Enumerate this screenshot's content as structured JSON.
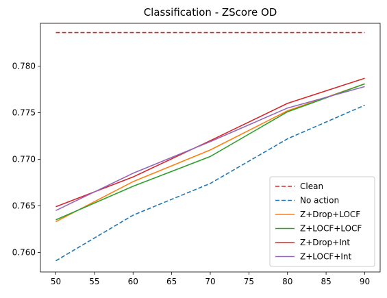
{
  "chart_data": {
    "type": "line",
    "title": "Classification - ZScore OD",
    "xlabel": "",
    "ylabel": "",
    "x": [
      50,
      60,
      70,
      80,
      90
    ],
    "xticks": [
      50,
      55,
      60,
      65,
      70,
      75,
      80,
      85,
      90
    ],
    "yticks": [
      0.76,
      0.765,
      0.77,
      0.775,
      0.78
    ],
    "ytick_labels": [
      "0.760",
      "0.765",
      "0.770",
      "0.775",
      "0.780"
    ],
    "xlim": [
      48,
      92
    ],
    "ylim": [
      0.7579,
      0.7846
    ],
    "grid": false,
    "legend_position": "lower-right",
    "series": [
      {
        "name": "Clean",
        "color": "#d62728",
        "dash": "dashed",
        "values": [
          0.7836,
          0.7836,
          0.7836,
          0.7836,
          0.7836
        ]
      },
      {
        "name": "No action",
        "color": "#1f77b4",
        "dash": "dashed",
        "values": [
          0.7591,
          0.764,
          0.7674,
          0.7722,
          0.7758
        ]
      },
      {
        "name": "Z+Drop+LOCF",
        "color": "#ff7f0e",
        "dash": "solid",
        "values": [
          0.7633,
          0.7676,
          0.771,
          0.7752,
          0.7781
        ]
      },
      {
        "name": "Z+LOCF+LOCF",
        "color": "#2ca02c",
        "dash": "solid",
        "values": [
          0.7635,
          0.7671,
          0.7703,
          0.7751,
          0.7781
        ]
      },
      {
        "name": "Z+Drop+Int",
        "color": "#d62728",
        "dash": "solid",
        "values": [
          0.7649,
          0.7681,
          0.772,
          0.776,
          0.7787
        ]
      },
      {
        "name": "Z+LOCF+Int",
        "color": "#9467bd",
        "dash": "solid",
        "values": [
          0.7645,
          0.7685,
          0.7719,
          0.7755,
          0.7778
        ]
      }
    ]
  }
}
